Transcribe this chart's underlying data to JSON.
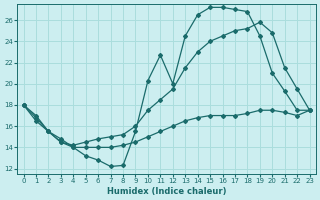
{
  "xlabel": "Humidex (Indice chaleur)",
  "bg_color": "#cceef0",
  "grid_color": "#aadddd",
  "line_color": "#1a6b6b",
  "xlim": [
    -0.5,
    23.5
  ],
  "ylim": [
    11.5,
    27.5
  ],
  "xticks": [
    0,
    1,
    2,
    3,
    4,
    5,
    6,
    7,
    8,
    9,
    10,
    11,
    12,
    13,
    14,
    15,
    16,
    17,
    18,
    19,
    20,
    21,
    22,
    23
  ],
  "yticks": [
    12,
    14,
    16,
    18,
    20,
    22,
    24,
    26
  ],
  "line1_x": [
    0,
    1,
    2,
    3,
    4,
    5,
    6,
    7,
    8,
    9,
    10,
    11,
    12,
    13,
    14,
    15,
    16,
    17,
    18,
    19,
    20,
    21,
    22,
    23
  ],
  "line1_y": [
    18.0,
    17.0,
    15.5,
    14.8,
    14.0,
    13.2,
    12.8,
    12.2,
    12.3,
    15.5,
    20.3,
    22.7,
    20.0,
    24.5,
    26.5,
    27.2,
    27.2,
    27.0,
    26.8,
    24.5,
    21.0,
    19.3,
    17.5,
    17.5
  ],
  "line2_x": [
    0,
    1,
    2,
    3,
    4,
    5,
    6,
    7,
    8,
    9,
    10,
    11,
    12,
    13,
    14,
    15,
    16,
    17,
    18,
    19,
    20,
    21,
    22,
    23
  ],
  "line2_y": [
    18.0,
    16.5,
    15.5,
    14.5,
    14.2,
    14.5,
    14.8,
    15.0,
    15.2,
    16.0,
    17.5,
    18.5,
    19.5,
    21.5,
    23.0,
    24.0,
    24.5,
    25.0,
    25.2,
    25.8,
    24.8,
    21.5,
    19.5,
    17.5
  ],
  "line3_x": [
    0,
    1,
    2,
    3,
    4,
    5,
    6,
    7,
    8,
    9,
    10,
    11,
    12,
    13,
    14,
    15,
    16,
    17,
    18,
    19,
    20,
    21,
    22,
    23
  ],
  "line3_y": [
    18.0,
    16.8,
    15.5,
    14.5,
    14.0,
    14.0,
    14.0,
    14.0,
    14.2,
    14.5,
    15.0,
    15.5,
    16.0,
    16.5,
    16.8,
    17.0,
    17.0,
    17.0,
    17.2,
    17.5,
    17.5,
    17.3,
    17.0,
    17.5
  ]
}
